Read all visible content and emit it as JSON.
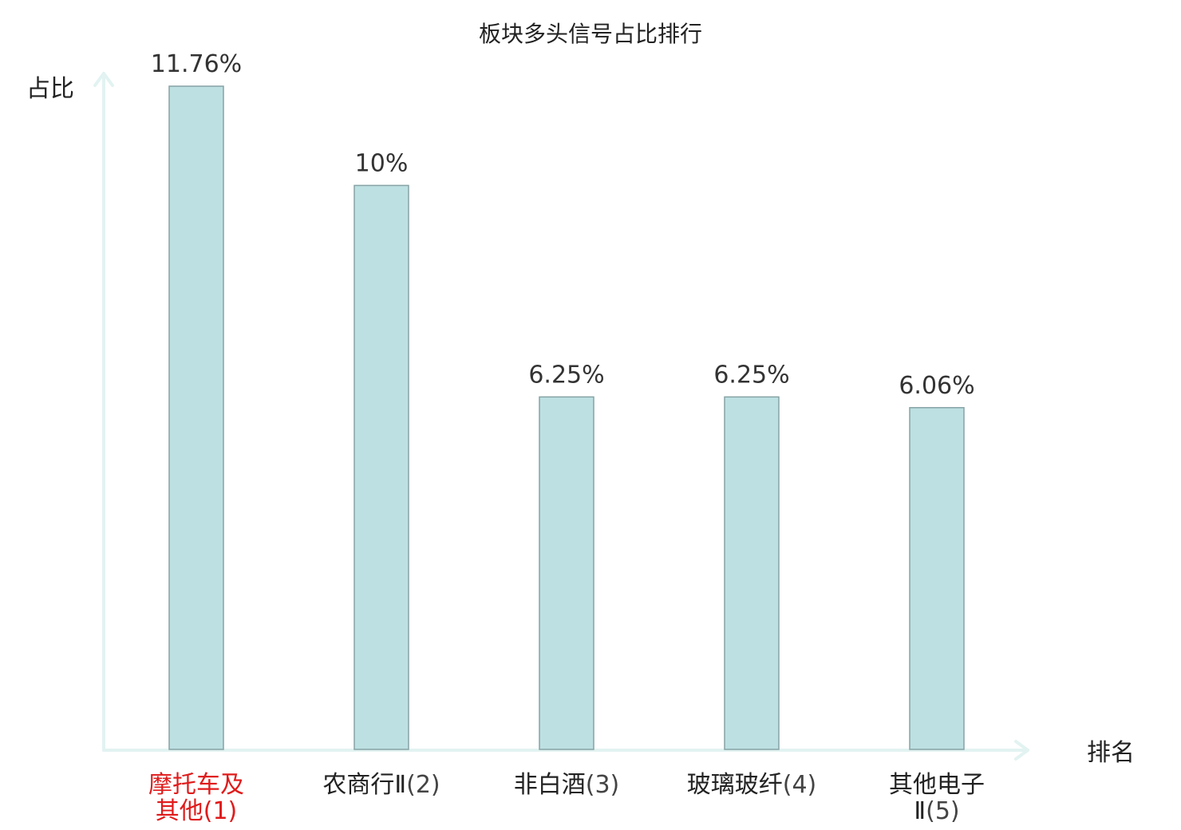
{
  "chart_data": {
    "type": "bar",
    "title": "板块多头信号占比排行",
    "xlabel": "排名",
    "ylabel": "占比",
    "ylim": [
      0,
      11.76
    ],
    "grid": false,
    "legend": "none",
    "categories": [
      {
        "name_lines": [
          "摩托车及",
          "其他"
        ],
        "rank": "(1)",
        "highlight": true
      },
      {
        "name_lines": [
          "农商行Ⅱ"
        ],
        "rank": "(2)",
        "highlight": false
      },
      {
        "name_lines": [
          "非白酒"
        ],
        "rank": "(3)",
        "highlight": false
      },
      {
        "name_lines": [
          "玻璃玻纤"
        ],
        "rank": "(4)",
        "highlight": false
      },
      {
        "name_lines": [
          "其他电子",
          "Ⅱ"
        ],
        "rank": "(5)",
        "highlight": false
      }
    ],
    "values": [
      11.76,
      10,
      6.25,
      6.25,
      6.06
    ],
    "value_labels": [
      "11.76%",
      "10%",
      "6.25%",
      "6.25%",
      "6.06%"
    ],
    "colors": {
      "bar_fill": "#bde0e2",
      "bar_stroke": "#87a3a5",
      "axis": "#e2f3f1",
      "highlight_text": "#e01b1b",
      "normal_text": "#222222",
      "rank_text": "#444444"
    }
  }
}
